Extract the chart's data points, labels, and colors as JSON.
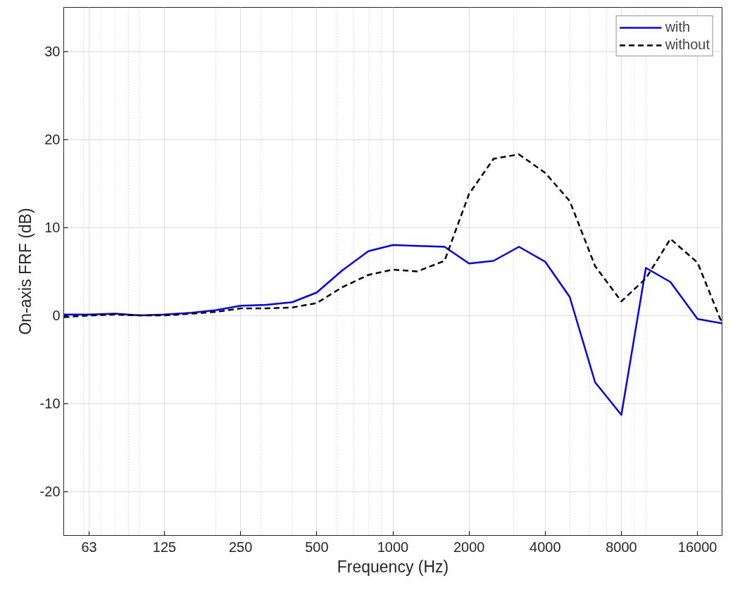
{
  "chart_data": {
    "type": "line",
    "xlabel": "Frequency (Hz)",
    "ylabel": "On-axis FRF (dB)",
    "log": "x",
    "xlim": [
      50,
      20000
    ],
    "xticks": [
      63,
      125,
      250,
      500,
      1000,
      2000,
      4000,
      8000,
      16000
    ],
    "ylim": [
      -25,
      35
    ],
    "yticks": [
      -20,
      -10,
      0,
      10,
      20,
      30
    ],
    "grid": true,
    "legend": "top right",
    "marker": "none",
    "x": [
      50,
      63,
      80,
      100,
      125,
      160,
      200,
      250,
      315,
      400,
      500,
      630,
      800,
      1000,
      1250,
      1600,
      2000,
      2500,
      3150,
      4000,
      5000,
      6300,
      8000,
      10000,
      12500,
      16000,
      20000
    ],
    "series": [
      {
        "name": "with",
        "color": "#0000ff",
        "line_style": "solid",
        "values": [
          0.1,
          0.1,
          0.2,
          0.0,
          0.1,
          0.3,
          0.6,
          1.1,
          1.2,
          1.5,
          2.6,
          5.1,
          7.3,
          8.0,
          7.9,
          7.8,
          5.9,
          6.2,
          7.8,
          6.1,
          2.1,
          -7.6,
          -11.3,
          5.4,
          3.8,
          -0.4,
          -0.9
        ]
      },
      {
        "name": "without",
        "color": "#000000",
        "line_style": "dashed",
        "values": [
          -0.2,
          0.0,
          0.1,
          0.0,
          0.0,
          0.2,
          0.4,
          0.8,
          0.8,
          0.9,
          1.4,
          3.2,
          4.6,
          5.2,
          5.0,
          6.2,
          13.8,
          17.8,
          18.3,
          16.2,
          13.0,
          5.6,
          1.6,
          4.2,
          8.7,
          6.0,
          -0.9
        ]
      }
    ]
  }
}
